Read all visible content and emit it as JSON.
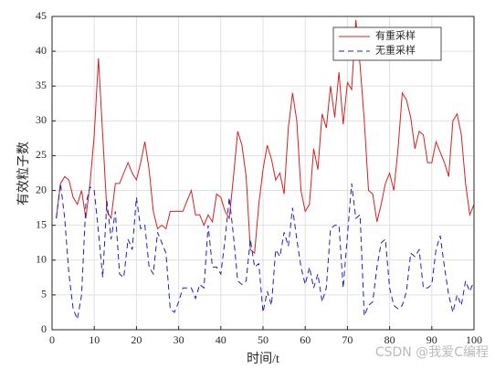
{
  "chart_data": {
    "type": "line",
    "xlabel": "时间/t",
    "ylabel": "有效粒子数",
    "watermark": "CSDN @我爱C编程",
    "x": [
      1,
      2,
      3,
      4,
      5,
      6,
      7,
      8,
      9,
      10,
      11,
      12,
      13,
      14,
      15,
      16,
      17,
      18,
      19,
      20,
      21,
      22,
      23,
      24,
      25,
      26,
      27,
      28,
      29,
      30,
      31,
      32,
      33,
      34,
      35,
      36,
      37,
      38,
      39,
      40,
      41,
      42,
      43,
      44,
      45,
      46,
      47,
      48,
      49,
      50,
      51,
      52,
      53,
      54,
      55,
      56,
      57,
      58,
      59,
      60,
      61,
      62,
      63,
      64,
      65,
      66,
      67,
      68,
      69,
      70,
      71,
      72,
      73,
      74,
      75,
      76,
      77,
      78,
      79,
      80,
      81,
      82,
      83,
      84,
      85,
      86,
      87,
      88,
      89,
      90,
      91,
      92,
      93,
      94,
      95,
      96,
      97,
      98,
      99,
      100
    ],
    "series": [
      {
        "name": "有重采样",
        "color": "#d62020",
        "dash": false,
        "values": [
          16,
          21,
          22,
          21.5,
          19,
          18,
          20,
          16,
          21,
          28,
          39,
          28,
          17,
          16,
          21,
          21,
          22.5,
          24,
          22.5,
          21.5,
          24,
          27,
          23,
          17,
          14.5,
          15,
          14.5,
          17,
          17,
          17,
          17,
          18.5,
          20,
          16.5,
          16.5,
          15,
          16.5,
          15.5,
          19.5,
          19,
          17,
          16,
          22,
          28.5,
          26.5,
          22,
          11.5,
          11,
          18,
          23,
          26.5,
          24.5,
          21.5,
          22.5,
          19.5,
          29,
          34,
          30,
          20,
          17,
          18,
          26,
          23,
          31,
          29,
          35,
          30.5,
          37,
          29.5,
          35.5,
          34.5,
          44.5,
          38,
          30,
          20,
          19.5,
          15.5,
          18,
          21,
          22.5,
          20,
          26,
          34,
          33,
          30.5,
          26,
          28.5,
          28,
          24,
          24,
          27,
          25.5,
          24,
          22,
          30,
          31,
          28,
          21,
          16.5,
          18
        ]
      },
      {
        "name": "无重采样",
        "color": "#1f1fbf",
        "dash": true,
        "values": [
          16,
          21,
          16,
          8,
          3,
          1.5,
          5,
          18,
          20.5,
          20,
          14,
          7.5,
          18.5,
          13,
          17,
          8,
          7.5,
          13,
          11.5,
          19,
          14.5,
          15,
          9,
          8,
          14,
          12.5,
          11,
          3,
          2.5,
          4,
          6,
          6,
          6,
          4.5,
          6.5,
          6,
          15,
          9,
          9,
          8,
          13,
          19,
          13.5,
          7,
          6.5,
          7,
          13,
          9,
          9.5,
          2.5,
          5.5,
          3.5,
          11.5,
          10.5,
          14,
          12,
          17.5,
          13,
          9,
          6.5,
          9,
          6,
          8,
          4,
          6,
          14.5,
          15,
          15,
          6,
          13.5,
          21,
          16,
          16.5,
          2,
          3.5,
          4,
          9,
          12.5,
          13,
          6,
          3.5,
          3,
          3.5,
          5.5,
          11,
          10.5,
          11.5,
          6,
          6,
          6.5,
          11.5,
          13.5,
          9,
          5,
          2.5,
          5,
          3.5,
          7,
          5.5,
          7
        ]
      }
    ],
    "xlim": [
      0,
      100
    ],
    "xticks": [
      0,
      10,
      20,
      30,
      40,
      50,
      60,
      70,
      80,
      90,
      100
    ],
    "ylim": [
      0,
      45
    ],
    "yticks": [
      0,
      5,
      10,
      15,
      20,
      25,
      30,
      35,
      40,
      45
    ],
    "grid": true,
    "legend": "northeast"
  }
}
